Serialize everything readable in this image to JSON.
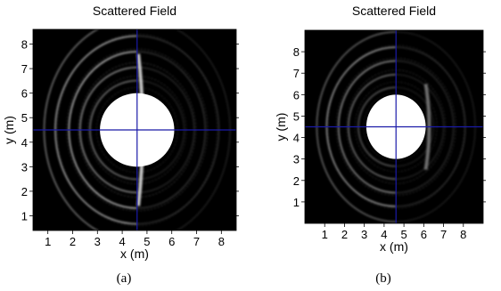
{
  "chart_data": [
    {
      "type": "heatmap",
      "panel_label": "(a)",
      "title": "Scattered Field",
      "xlabel": "x (m)",
      "ylabel": "y (m)",
      "xlim": [
        0.4,
        8.6
      ],
      "ylim": [
        0.4,
        8.6
      ],
      "xticks": [
        "1",
        "2",
        "3",
        "4",
        "5",
        "6",
        "7",
        "8"
      ],
      "yticks": [
        "1",
        "2",
        "3",
        "4",
        "5",
        "6",
        "7",
        "8"
      ],
      "colormap": "grayscale",
      "grid": false,
      "scatterer": {
        "shape": "circle",
        "center": [
          4.6,
          4.5
        ],
        "radius": 1.5,
        "color": "#ffffff"
      },
      "crosshair": {
        "x": 4.6,
        "y": 4.5,
        "color": "#1a1aa8"
      },
      "wavefronts": [
        {
          "cx": 4.6,
          "cy": 4.5,
          "r": 1.9,
          "spread": 1.05,
          "intensity": 0.45
        },
        {
          "cx": 4.6,
          "cy": 4.5,
          "r": 2.3,
          "spread": 1.1,
          "intensity": 0.55
        },
        {
          "cx": 4.6,
          "cy": 4.5,
          "r": 2.75,
          "spread": 1.15,
          "intensity": 0.7
        },
        {
          "cx": 4.6,
          "cy": 4.5,
          "r": 3.3,
          "spread": 1.15,
          "intensity": 0.65
        },
        {
          "cx": 4.6,
          "cy": 4.5,
          "r": 3.75,
          "spread": 1.2,
          "intensity": 0.45
        }
      ],
      "shadow_boundary": {
        "x": 4.65,
        "y_range": [
          1.4,
          7.6
        ],
        "intensity": 0.9
      },
      "shadow_side": "right"
    },
    {
      "type": "heatmap",
      "panel_label": "(b)",
      "title": "Scattered Field",
      "xlabel": "x (m)",
      "ylabel": "y (m)",
      "xlim": [
        0,
        9
      ],
      "ylim": [
        0,
        9
      ],
      "xticks": [
        "1",
        "2",
        "3",
        "4",
        "5",
        "6",
        "7",
        "8"
      ],
      "yticks": [
        "1",
        "2",
        "3",
        "4",
        "5",
        "6",
        "7",
        "8"
      ],
      "colormap": "grayscale",
      "grid": false,
      "scatterer": {
        "shape": "circle",
        "center": [
          4.6,
          4.5
        ],
        "radius": 1.5,
        "color": "#ffffff"
      },
      "crosshair": {
        "x": 4.6,
        "y": 4.5,
        "color": "#1a1aa8"
      },
      "wavefronts": [
        {
          "cx": 4.6,
          "cy": 4.5,
          "r": 1.9,
          "spread": 1.05,
          "intensity": 0.35
        },
        {
          "cx": 4.6,
          "cy": 4.5,
          "r": 2.4,
          "spread": 1.1,
          "intensity": 0.45
        },
        {
          "cx": 4.6,
          "cy": 4.5,
          "r": 2.9,
          "spread": 1.15,
          "intensity": 0.55
        },
        {
          "cx": 4.6,
          "cy": 4.5,
          "r": 3.5,
          "spread": 1.15,
          "intensity": 0.6
        },
        {
          "cx": 4.6,
          "cy": 4.5,
          "r": 4.0,
          "spread": 1.2,
          "intensity": 0.4
        }
      ],
      "shadow_boundary": {
        "x": 6.1,
        "y_range": [
          2.5,
          6.5
        ],
        "intensity": 0.5
      },
      "shadow_side": "right"
    }
  ]
}
